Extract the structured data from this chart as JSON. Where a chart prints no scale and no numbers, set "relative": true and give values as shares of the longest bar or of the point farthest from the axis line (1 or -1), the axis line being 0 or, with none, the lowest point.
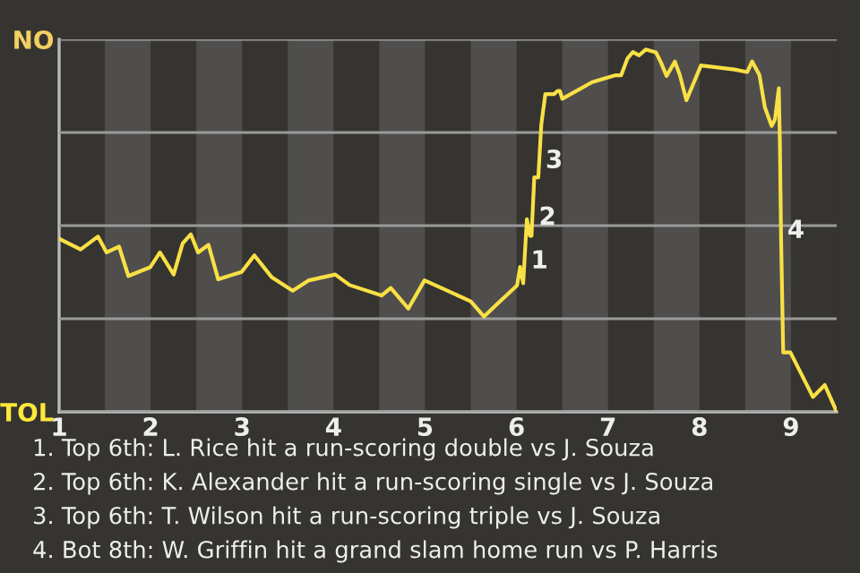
{
  "chart_data": {
    "type": "line",
    "relative": true,
    "x": [
      1.0,
      1.235,
      1.425,
      1.519,
      1.655,
      1.757,
      1.995,
      2.102,
      2.252,
      2.35,
      2.44,
      2.519,
      2.633,
      2.738,
      2.995,
      3.134,
      3.326,
      3.553,
      3.731,
      4.018,
      4.175,
      4.525,
      4.625,
      4.817,
      4.994,
      5.5,
      5.645,
      5.781,
      6.006,
      6.039,
      6.073,
      6.113,
      6.147,
      6.164,
      6.194,
      6.238,
      6.271,
      6.315,
      6.41,
      6.45,
      6.473,
      6.5,
      6.827,
      7.083,
      7.144,
      7.212,
      7.272,
      7.34,
      7.412,
      7.525,
      7.579,
      7.64,
      7.731,
      7.785,
      7.857,
      8.016,
      8.382,
      8.522,
      8.576,
      8.655,
      8.715,
      8.789,
      8.825,
      8.867,
      8.879,
      8.892,
      8.915,
      8.994,
      9.24,
      9.37,
      9.5
    ],
    "series": [
      {
        "color": "#f8e045",
        "values": [
          0.478,
          0.448,
          0.484,
          0.44,
          0.456,
          0.375,
          0.399,
          0.44,
          0.379,
          0.465,
          0.49,
          0.44,
          0.461,
          0.366,
          0.386,
          0.432,
          0.371,
          0.334,
          0.363,
          0.379,
          0.35,
          0.321,
          0.342,
          0.285,
          0.363,
          0.305,
          0.263,
          0.296,
          0.349,
          0.4,
          0.355,
          0.532,
          0.486,
          0.486,
          0.647,
          0.647,
          0.793,
          0.877,
          0.877,
          0.886,
          0.886,
          0.864,
          0.91,
          0.929,
          0.929,
          0.975,
          0.993,
          0.984,
          1,
          0.992,
          0.964,
          0.927,
          0.967,
          0.93,
          0.86,
          0.956,
          0.945,
          0.938,
          0.967,
          0.93,
          0.84,
          0.789,
          0.807,
          0.893,
          0.741,
          0.478,
          0.164,
          0.164,
          0.041,
          0.074,
          0
        ]
      }
    ],
    "xlim": [
      1,
      9.5
    ],
    "xticks": [
      1,
      2,
      3,
      4,
      5,
      6,
      7,
      8,
      9
    ],
    "grid": "y",
    "bands": [
      {
        "axis": "x",
        "from": 1.5,
        "to": 2,
        "color": "#4f4e4c"
      },
      {
        "axis": "x",
        "from": 2.5,
        "to": 3,
        "color": "#4f4e4c"
      },
      {
        "axis": "x",
        "from": 3.5,
        "to": 4,
        "color": "#4f4e4c"
      },
      {
        "axis": "x",
        "from": 4.5,
        "to": 5,
        "color": "#4f4e4c"
      },
      {
        "axis": "x",
        "from": 5.5,
        "to": 6,
        "color": "#4f4e4c"
      },
      {
        "axis": "x",
        "from": 6.5,
        "to": 7,
        "color": "#4f4e4c"
      },
      {
        "axis": "x",
        "from": 7.5,
        "to": 8,
        "color": "#4f4e4c"
      },
      {
        "axis": "x",
        "from": 8.5,
        "to": 9,
        "color": "#4f4e4c"
      }
    ],
    "annotations": [
      "NO",
      "TOL",
      {
        "text": "1",
        "x": 6.087,
        "y": 0.415
      },
      {
        "text": "2",
        "x": 6.175,
        "y": 0.535
      },
      {
        "text": "3",
        "x": 6.248,
        "y": 0.692
      },
      {
        "text": "4",
        "x": 8.891,
        "y": 0.499
      },
      "1. Top 6th: L. Rice hit a run-scoring double vs J. Souza",
      "2. Top 6th: K. Alexander hit a run-scoring single vs J. Souza",
      "3. Top 6th: T. Wilson hit a run-scoring triple vs J. Souza",
      "4. Bot 8th: W. Griffin hit a grand slam home run vs P. Harris"
    ]
  }
}
